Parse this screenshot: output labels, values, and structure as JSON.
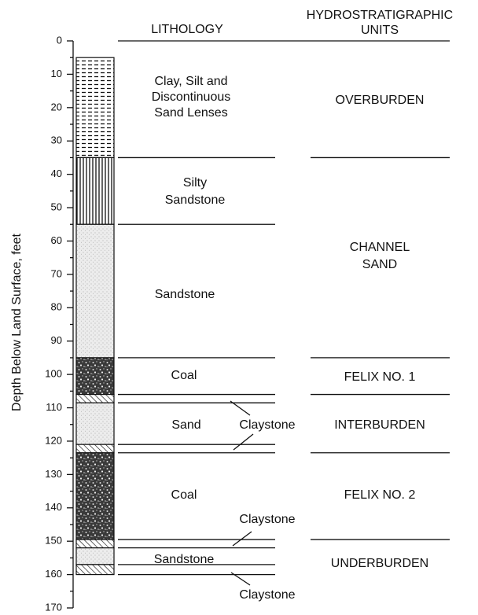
{
  "headers": {
    "lithology": "LITHOLOGY",
    "units": [
      "HYDROSTRATIGRAPHIC",
      "UNITS"
    ]
  },
  "axis": {
    "label": "Depth Below Land Surface, feet",
    "range": [
      0,
      170
    ],
    "ticks": [
      0,
      10,
      20,
      30,
      40,
      50,
      60,
      70,
      80,
      90,
      100,
      110,
      120,
      130,
      140,
      150,
      160,
      170
    ],
    "minor_ticks": [
      5,
      15,
      25,
      35,
      45,
      55,
      65,
      75,
      85,
      95,
      105,
      115,
      125,
      135,
      145,
      155,
      165
    ]
  },
  "layers": [
    {
      "top": 5,
      "bottom": 35,
      "pattern": "dashed"
    },
    {
      "top": 35,
      "bottom": 55,
      "pattern": "vertical"
    },
    {
      "top": 55,
      "bottom": 95,
      "pattern": "stipple"
    },
    {
      "top": 95,
      "bottom": 106,
      "pattern": "coal"
    },
    {
      "top": 106,
      "bottom": 108.5,
      "pattern": "hatch"
    },
    {
      "top": 108.5,
      "bottom": 121,
      "pattern": "stipple"
    },
    {
      "top": 121,
      "bottom": 123.5,
      "pattern": "hatch"
    },
    {
      "top": 123.5,
      "bottom": 149.5,
      "pattern": "coal"
    },
    {
      "top": 149.5,
      "bottom": 152,
      "pattern": "hatch"
    },
    {
      "top": 152,
      "bottom": 157,
      "pattern": "stipple"
    },
    {
      "top": 157,
      "bottom": 160,
      "pattern": "hatch"
    }
  ],
  "lithology_lines": [
    35,
    55,
    95,
    106,
    108.5,
    121,
    123.5,
    149.5,
    152,
    157,
    160
  ],
  "unit_lines": [
    0,
    35,
    95,
    106,
    123.5,
    149.5
  ],
  "lithology_labels": [
    [
      "Clay, Silt and",
      "Discontinuous",
      "Sand Lenses"
    ],
    [
      "Silty",
      "Sandstone"
    ],
    [
      "Sandstone"
    ],
    [
      "Coal"
    ],
    [
      "Sand"
    ],
    [
      "Coal"
    ],
    [
      "Sandstone"
    ]
  ],
  "claystone_labels": [
    "Claystone",
    "Claystone",
    "Claystone"
  ],
  "units": [
    [
      "OVERBURDEN"
    ],
    [
      "CHANNEL",
      "SAND"
    ],
    [
      "FELIX NO. 1"
    ],
    [
      "INTERBURDEN"
    ],
    [
      "FELIX NO. 2"
    ],
    [
      "UNDERBURDEN"
    ]
  ]
}
